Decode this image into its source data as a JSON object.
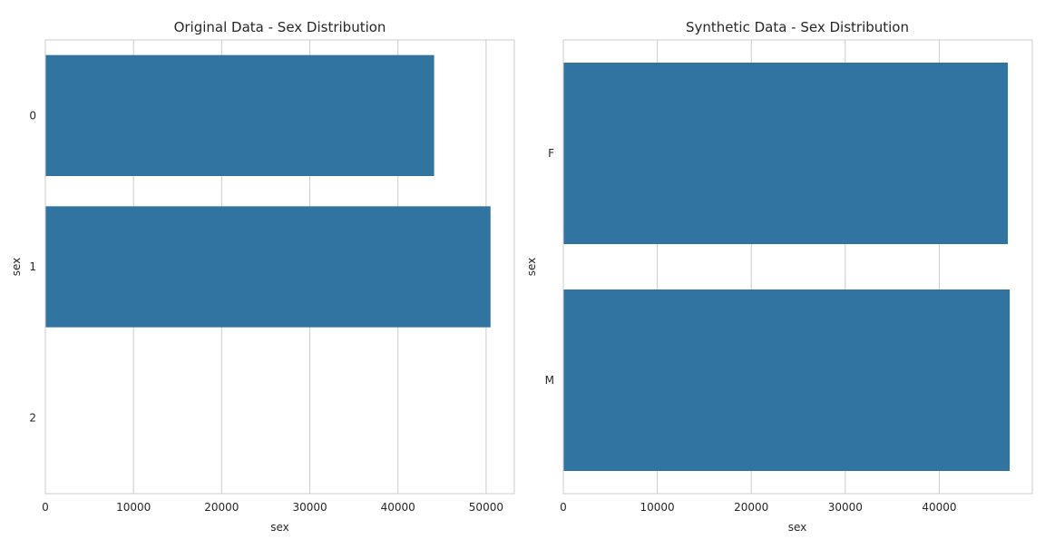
{
  "chart_data": [
    {
      "type": "bar",
      "orientation": "horizontal",
      "title": "Original Data - Sex Distribution",
      "xlabel": "sex",
      "ylabel": "sex",
      "categories": [
        "0",
        "1",
        "2"
      ],
      "values": [
        44100,
        50500,
        0
      ],
      "xlim": [
        0,
        53200
      ],
      "xticks": [
        0,
        10000,
        20000,
        30000,
        40000,
        50000
      ],
      "grid": true,
      "bar_color": "#3274a1"
    },
    {
      "type": "bar",
      "orientation": "horizontal",
      "title": "Synthetic Data - Sex Distribution",
      "xlabel": "sex",
      "ylabel": "sex",
      "categories": [
        "F",
        "M"
      ],
      "values": [
        47300,
        47500
      ],
      "xlim": [
        0,
        49900
      ],
      "xticks": [
        0,
        10000,
        20000,
        30000,
        40000
      ],
      "grid": true,
      "bar_color": "#3274a1"
    }
  ]
}
